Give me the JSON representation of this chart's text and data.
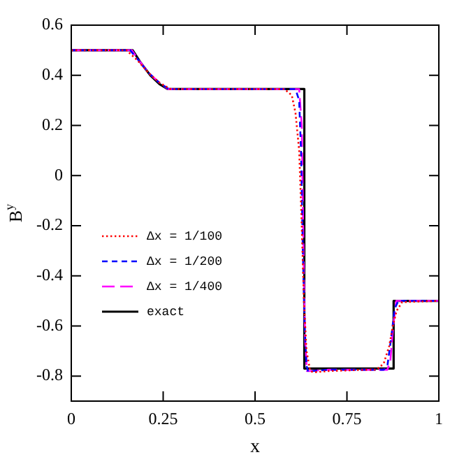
{
  "chart_data": {
    "type": "line",
    "xlabel": "x",
    "ylabel": "B$^{y}$",
    "xlim": [
      0,
      1
    ],
    "ylim": [
      -0.9,
      0.6
    ],
    "xticks": [
      0,
      0.25,
      0.5,
      0.75,
      1
    ],
    "yticks": [
      -0.8,
      -0.6,
      -0.4,
      -0.2,
      0,
      0.2,
      0.4,
      0.6
    ],
    "grid": false,
    "legend": "bottom left",
    "marker": "none",
    "series": [
      {
        "name": "Δx = 1/100",
        "color": "#ff0000",
        "line_style": "dotted",
        "x": [
          0,
          0.15,
          0.18,
          0.21,
          0.24,
          0.27,
          0.3,
          0.58,
          0.6,
          0.61,
          0.62,
          0.627,
          0.633,
          0.64,
          0.65,
          0.66,
          0.7,
          0.8,
          0.83,
          0.85,
          0.865,
          0.875,
          0.885,
          0.9,
          1
        ],
        "values": [
          0.5,
          0.5,
          0.46,
          0.41,
          0.37,
          0.345,
          0.345,
          0.345,
          0.32,
          0.25,
          0.1,
          -0.2,
          -0.5,
          -0.7,
          -0.78,
          -0.785,
          -0.78,
          -0.775,
          -0.775,
          -0.75,
          -0.68,
          -0.6,
          -0.54,
          -0.505,
          -0.5
        ]
      },
      {
        "name": "Δx = 1/200",
        "color": "#0000ff",
        "line_style": "dashed",
        "x": [
          0,
          0.16,
          0.18,
          0.21,
          0.24,
          0.265,
          0.3,
          0.61,
          0.62,
          0.625,
          0.63,
          0.635,
          0.64,
          0.645,
          0.655,
          0.7,
          0.85,
          0.86,
          0.87,
          0.88,
          0.89,
          1
        ],
        "values": [
          0.5,
          0.5,
          0.465,
          0.41,
          0.37,
          0.345,
          0.345,
          0.345,
          0.3,
          0.1,
          -0.3,
          -0.6,
          -0.76,
          -0.785,
          -0.78,
          -0.775,
          -0.775,
          -0.76,
          -0.65,
          -0.53,
          -0.5,
          -0.5
        ]
      },
      {
        "name": "Δx = 1/400",
        "color": "#ff00ff",
        "line_style": "longdash",
        "x": [
          0,
          0.165,
          0.18,
          0.21,
          0.24,
          0.263,
          0.3,
          0.62,
          0.627,
          0.632,
          0.636,
          0.641,
          0.648,
          0.7,
          0.86,
          0.868,
          0.876,
          0.884,
          1
        ],
        "values": [
          0.5,
          0.5,
          0.468,
          0.41,
          0.37,
          0.345,
          0.345,
          0.345,
          0.2,
          -0.3,
          -0.65,
          -0.78,
          -0.78,
          -0.775,
          -0.775,
          -0.74,
          -0.6,
          -0.5,
          -0.5
        ]
      },
      {
        "name": "exact",
        "color": "#000000",
        "line_style": "solid",
        "x": [
          0,
          0.167,
          0.19,
          0.215,
          0.24,
          0.262,
          0.634,
          0.634,
          0.877,
          0.877,
          1
        ],
        "values": [
          0.5,
          0.5,
          0.448,
          0.4,
          0.365,
          0.345,
          0.345,
          -0.77,
          -0.77,
          -0.5,
          -0.5
        ]
      }
    ]
  }
}
